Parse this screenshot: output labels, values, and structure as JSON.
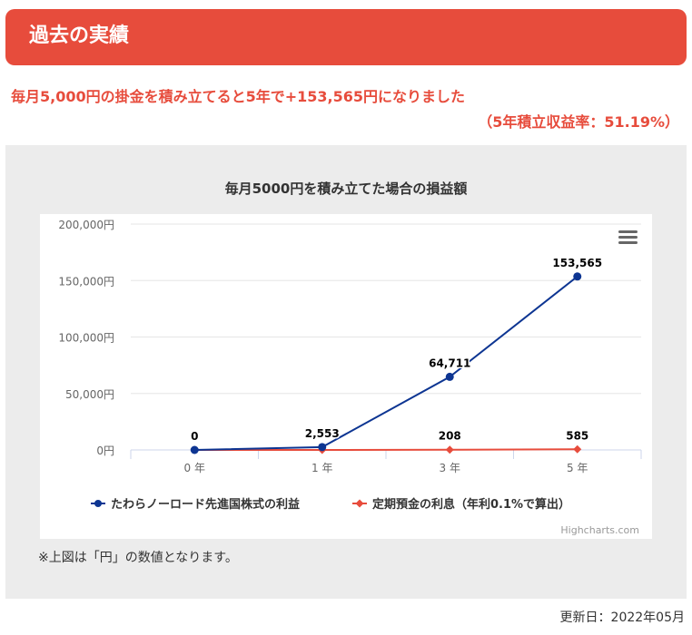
{
  "header": {
    "title": "過去の実績"
  },
  "summary": {
    "line1": "毎月5,000円の掛金を積み立てると5年で+153,565円になりました",
    "line2": "（5年積立収益率：51.19%）"
  },
  "chart_data": {
    "type": "line",
    "title": "毎月5000円を積み立てた場合の損益額",
    "categories": [
      "0 年",
      "1 年",
      "3 年",
      "5 年"
    ],
    "ylim": [
      0,
      200000
    ],
    "yticks": [
      0,
      50000,
      100000,
      150000,
      200000
    ],
    "ytick_labels": [
      "0円",
      "50,000円",
      "100,000円",
      "150,000円",
      "200,000円"
    ],
    "grid": true,
    "legend_position": "bottom",
    "series": [
      {
        "name": "たわらノーロード先進国株式の利益",
        "color": "#0d3592",
        "marker": "circle",
        "values": [
          0,
          2553,
          64711,
          153565
        ],
        "labels": [
          "0",
          "2,553",
          "64,711",
          "153,565"
        ]
      },
      {
        "name": "定期預金の利息（年利0.1%で算出）",
        "color": "#e74c3c",
        "marker": "diamond",
        "values": [
          0,
          0,
          208,
          585
        ],
        "labels": [
          "",
          "",
          "208",
          "585"
        ]
      }
    ],
    "credit": "Highcharts.com"
  },
  "note": "※上図は「円」の数値となります。",
  "updated": "更新日：2022年05月"
}
